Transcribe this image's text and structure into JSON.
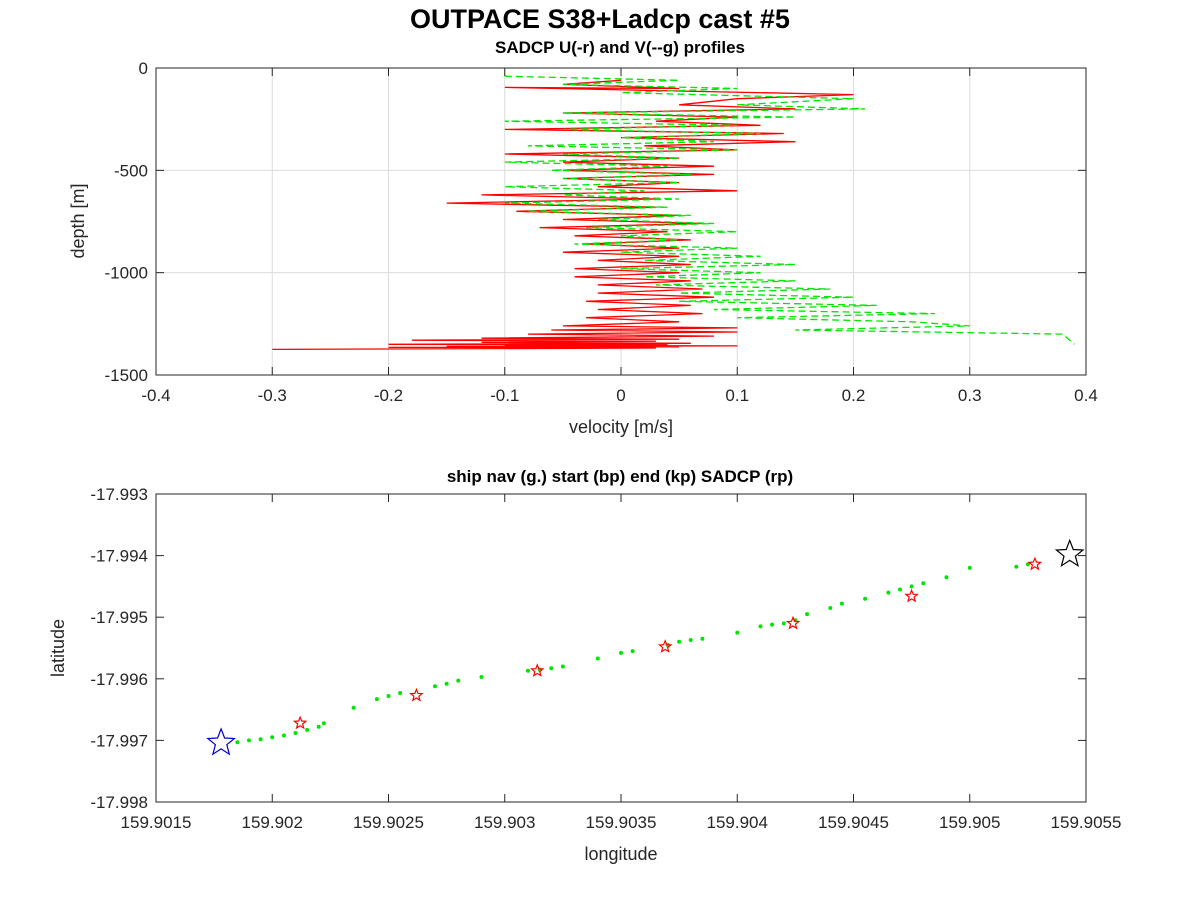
{
  "figure": {
    "title": "OUTPACE S38+Ladcp cast #5"
  },
  "chart_data": [
    {
      "type": "line",
      "title": "SADCP U(-r) and V(--g) profiles",
      "xlabel": "velocity [m/s]",
      "ylabel": "depth [m]",
      "xlim": [
        -0.4,
        0.4
      ],
      "ylim": [
        -1500,
        0
      ],
      "grid": true,
      "xticks": [
        -0.4,
        -0.3,
        -0.2,
        -0.1,
        0,
        0.1,
        0.2,
        0.3,
        0.4
      ],
      "xtick_labels": [
        "-0.4",
        "-0.3",
        "-0.2",
        "-0.1",
        "0",
        "0.1",
        "0.2",
        "0.3",
        "0.4"
      ],
      "yticks": [
        0,
        -500,
        -1000,
        -1500
      ],
      "ytick_labels": [
        "0",
        "-500",
        "-1000",
        "-1500"
      ],
      "series": [
        {
          "color": "#ff0000",
          "dash": "solid",
          "x": [
            0.0,
            -0.05,
            0.05,
            -0.1,
            0.2,
            0.1,
            0.05,
            0.15,
            -0.05,
            0.1,
            0.03,
            0.12,
            -0.1,
            0.14,
            0.0,
            0.15,
            0.02,
            0.1,
            -0.1,
            0.05,
            -0.05,
            0.08,
            -0.05,
            0.08,
            -0.05,
            0.05,
            -0.02,
            0.1,
            -0.12,
            0.03,
            -0.15,
            0.03,
            -0.09,
            0.05,
            -0.05,
            0.07,
            -0.07,
            0.04,
            -0.04,
            0.06,
            -0.03,
            0.05,
            -0.05,
            0.05,
            -0.02,
            0.06,
            -0.04,
            0.05,
            -0.04,
            0.06,
            -0.02,
            0.07,
            -0.02,
            0.08,
            -0.03,
            0.06,
            -0.02,
            0.07,
            -0.03,
            0.05,
            -0.05,
            0.1,
            -0.06,
            0.1,
            -0.08,
            0.08,
            -0.12,
            0.05,
            -0.18,
            0.03,
            -0.12,
            0.06,
            -0.2,
            0.04,
            -0.1,
            0.1,
            -0.15,
            0.05,
            -0.2,
            0.03,
            -0.3
          ],
          "y": [
            -60,
            -80,
            -100,
            -95,
            -130,
            -150,
            -180,
            -200,
            -220,
            -240,
            -260,
            -280,
            -300,
            -320,
            -340,
            -360,
            -380,
            -400,
            -420,
            -440,
            -460,
            -480,
            -500,
            -520,
            -540,
            -560,
            -580,
            -600,
            -620,
            -640,
            -660,
            -680,
            -700,
            -720,
            -740,
            -760,
            -780,
            -800,
            -820,
            -840,
            -860,
            -880,
            -900,
            -920,
            -940,
            -960,
            -980,
            -1000,
            -1020,
            -1040,
            -1060,
            -1080,
            -1100,
            -1120,
            -1140,
            -1160,
            -1180,
            -1200,
            -1220,
            -1240,
            -1260,
            -1270,
            -1280,
            -1290,
            -1300,
            -1310,
            -1320,
            -1325,
            -1330,
            -1335,
            -1340,
            -1345,
            -1350,
            -1352,
            -1355,
            -1358,
            -1360,
            -1362,
            -1365,
            -1368,
            -1375
          ]
        },
        {
          "color": "#00e600",
          "dash": "dashed",
          "x": [
            -0.1,
            0.05,
            -0.05,
            0.1,
            0.0,
            0.2,
            0.1,
            0.21,
            -0.05,
            0.15,
            -0.1,
            0.1,
            -0.05,
            0.12,
            0.0,
            0.08,
            -0.08,
            0.1,
            -0.05,
            0.05,
            -0.1,
            0.04,
            -0.06,
            0.06,
            -0.05,
            0.05,
            -0.1,
            0.02,
            -0.05,
            0.05,
            -0.1,
            0.04,
            -0.08,
            0.06,
            -0.02,
            0.08,
            -0.03,
            0.1,
            0.0,
            0.05,
            -0.04,
            0.1,
            0.0,
            0.12,
            0.02,
            0.15,
            0.0,
            0.12,
            0.02,
            0.15,
            0.03,
            0.18,
            0.05,
            0.2,
            0.05,
            0.22,
            0.08,
            0.27,
            0.1,
            0.25,
            0.3,
            0.15,
            0.38,
            0.39
          ],
          "y": [
            -40,
            -60,
            -80,
            -100,
            -120,
            -150,
            -180,
            -200,
            -220,
            -240,
            -260,
            -280,
            -300,
            -320,
            -340,
            -360,
            -380,
            -400,
            -420,
            -440,
            -460,
            -480,
            -500,
            -520,
            -540,
            -560,
            -580,
            -600,
            -620,
            -640,
            -660,
            -680,
            -700,
            -720,
            -740,
            -760,
            -780,
            -800,
            -820,
            -840,
            -860,
            -880,
            -900,
            -920,
            -940,
            -960,
            -980,
            -1000,
            -1020,
            -1040,
            -1060,
            -1080,
            -1100,
            -1120,
            -1140,
            -1160,
            -1180,
            -1200,
            -1220,
            -1240,
            -1260,
            -1280,
            -1300,
            -1350
          ]
        }
      ]
    },
    {
      "type": "scatter",
      "title": "ship nav (g.) start (bp) end (kp) SADCP (rp)",
      "xlabel": "longitude",
      "ylabel": "latitude",
      "xlim": [
        159.9015,
        159.9055
      ],
      "ylim": [
        -17.998,
        -17.993
      ],
      "grid": false,
      "xticks": [
        159.9015,
        159.902,
        159.9025,
        159.903,
        159.9035,
        159.904,
        159.9045,
        159.905,
        159.9055
      ],
      "xtick_labels": [
        "159.9015",
        "159.902",
        "159.9025",
        "159.903",
        "159.9035",
        "159.904",
        "159.9045",
        "159.905",
        "159.9055"
      ],
      "yticks": [
        -17.993,
        -17.994,
        -17.995,
        -17.996,
        -17.997,
        -17.998
      ],
      "ytick_labels": [
        "-17.993",
        "-17.994",
        "-17.995",
        "-17.996",
        "-17.997",
        "-17.998"
      ],
      "nav": {
        "color": "#00e600",
        "lon": [
          159.90185,
          159.9019,
          159.90195,
          159.902,
          159.90205,
          159.9021,
          159.90215,
          159.9022,
          159.902222,
          159.90235,
          159.90245,
          159.9025,
          159.90255,
          159.9027,
          159.90275,
          159.9028,
          159.9029,
          159.9031,
          159.90315,
          159.9032,
          159.90325,
          159.9034,
          159.9035,
          159.90355,
          159.9037,
          159.90375,
          159.9038,
          159.90385,
          159.904,
          159.9041,
          159.90415,
          159.9042,
          159.90425,
          159.9043,
          159.9044,
          159.90445,
          159.90455,
          159.90465,
          159.9047,
          159.90475,
          159.9048,
          159.9049,
          159.905,
          159.9052,
          159.90525
        ],
        "lat": [
          -17.99703,
          -17.997,
          -17.99698,
          -17.99695,
          -17.99692,
          -17.99688,
          -17.99683,
          -17.99678,
          -17.99672,
          -17.99647,
          -17.99633,
          -17.99628,
          -17.99623,
          -17.99612,
          -17.99608,
          -17.99603,
          -17.99597,
          -17.99587,
          -17.99585,
          -17.99583,
          -17.9958,
          -17.99567,
          -17.99558,
          -17.99555,
          -17.99545,
          -17.9954,
          -17.99537,
          -17.99535,
          -17.99525,
          -17.99515,
          -17.99512,
          -17.9951,
          -17.99505,
          -17.99495,
          -17.99485,
          -17.99478,
          -17.9947,
          -17.9946,
          -17.99455,
          -17.9945,
          -17.99445,
          -17.99435,
          -17.9942,
          -17.99418,
          -17.99414
        ]
      },
      "sadcp": {
        "color": "#ff0000",
        "lon": [
          159.90212,
          159.90262,
          159.90314,
          159.90369,
          159.90424,
          159.90475,
          159.90528
        ],
        "lat": [
          -17.99672,
          -17.99627,
          -17.99587,
          -17.99548,
          -17.9951,
          -17.99466,
          -17.99414
        ]
      },
      "start": {
        "color": "#0000cc",
        "lon": 159.90178,
        "lat": -17.99704
      },
      "end": {
        "color": "#000000",
        "lon": 159.90543,
        "lat": -17.99398
      }
    }
  ]
}
